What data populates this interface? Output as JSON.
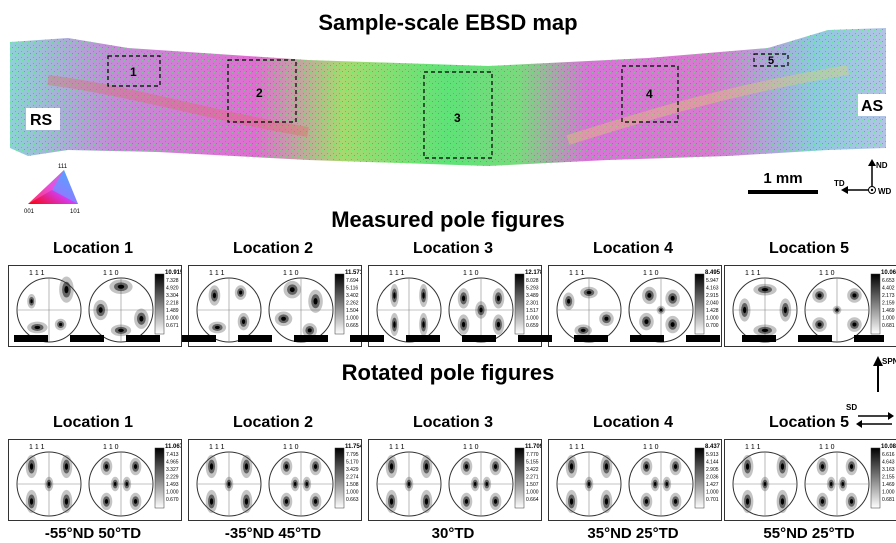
{
  "titles": {
    "map": "Sample-scale EBSD map",
    "measured": "Measured pole figures",
    "rotated": "Rotated pole figures"
  },
  "map": {
    "side_left": "RS",
    "side_right": "AS",
    "boxes": [
      "1",
      "2",
      "3",
      "4",
      "5"
    ],
    "scale_bar": "1 mm",
    "axes": {
      "nd": "ND",
      "td": "TD",
      "wd": "WD"
    },
    "ipf_corners": {
      "top": "111",
      "left": "001",
      "right": "101"
    }
  },
  "pole_labels": {
    "a": "1 1 1",
    "b": "1 1 0"
  },
  "measured": [
    {
      "location": "Location 1",
      "max": "10.915",
      "levels": [
        "7.328",
        "4.920",
        "3.304",
        "2.218",
        "1.489",
        "1.000",
        "0.671"
      ]
    },
    {
      "location": "Location 2",
      "max": "11.571",
      "levels": [
        "7.694",
        "5.116",
        "3.402",
        "2.262",
        "1.504",
        "1.000",
        "0.665"
      ]
    },
    {
      "location": "Location 3",
      "max": "12.178",
      "levels": [
        "8.028",
        "5.293",
        "3.489",
        "2.301",
        "1.517",
        "1.000",
        "0.659"
      ]
    },
    {
      "location": "Location 4",
      "max": "8.495",
      "levels": [
        "5.947",
        "4.163",
        "2.915",
        "2.040",
        "1.428",
        "1.000",
        "0.700"
      ]
    },
    {
      "location": "Location 5",
      "max": "10.06",
      "levels": [
        "6.653",
        "4.402",
        "2.173",
        "2.159",
        "1.469",
        "1.000",
        "0.681"
      ]
    }
  ],
  "rotated": [
    {
      "location": "Location 1",
      "max": "11.067",
      "levels": [
        "7.413",
        "4.965",
        "3.327",
        "2.229",
        "1.493",
        "1.000",
        "0.670"
      ],
      "rotation": "-55°ND 50°TD"
    },
    {
      "location": "Location 2",
      "max": "11.754",
      "levels": [
        "7.795",
        "5.170",
        "3.429",
        "2.274",
        "1.508",
        "1.000",
        "0.663"
      ],
      "rotation": "-35°ND 45°TD"
    },
    {
      "location": "Location 3",
      "max": "11.709",
      "levels": [
        "7.770",
        "5.155",
        "3.422",
        "2.271",
        "1.507",
        "1.000",
        "0.664"
      ],
      "rotation": "30°TD"
    },
    {
      "location": "Location 4",
      "max": "8.437",
      "levels": [
        "5.913",
        "4.144",
        "2.905",
        "2.036",
        "1.427",
        "1.000",
        "0.701"
      ],
      "rotation": "35°ND 25°TD"
    },
    {
      "location": "Location 5",
      "max": "10.085",
      "levels": [
        "6.616",
        "4.643",
        "3.163",
        "2.155",
        "1.469",
        "1.000",
        "0.681"
      ],
      "rotation": "55°ND 25°TD"
    }
  ],
  "shear": {
    "spn": "SPN",
    "sd": "SD"
  },
  "colors": {
    "panel_border": "#333333",
    "map_green": "#66e07a",
    "map_pink": "#e070d0"
  }
}
